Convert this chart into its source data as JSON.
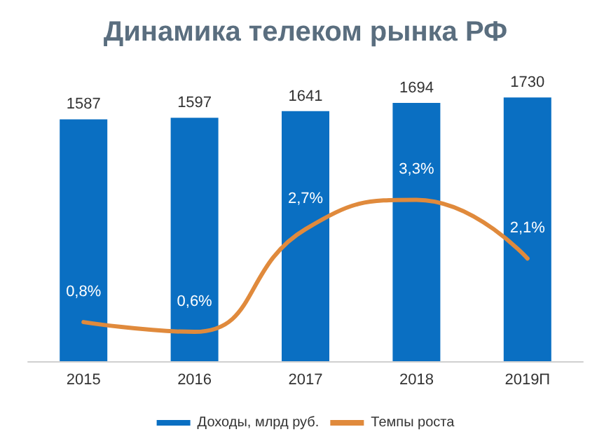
{
  "chart_data": {
    "type": "bar",
    "title": "Динамика телеком рынка РФ",
    "categories": [
      "2015",
      "2016",
      "2017",
      "2018",
      "2019П"
    ],
    "series": [
      {
        "name": "Доходы, млрд руб.",
        "color": "#0a6fc2",
        "values": [
          1587,
          1597,
          1641,
          1694,
          1730
        ],
        "value_labels": [
          "1587",
          "1597",
          "1641",
          "1694",
          "1730"
        ]
      },
      {
        "name": "Темпы роста",
        "type": "line",
        "axis": "y2",
        "color": "#e08a3c",
        "values": [
          0.8,
          0.6,
          2.7,
          3.3,
          2.1
        ],
        "value_labels": [
          "0,8%",
          "0,6%",
          "2,7%",
          "3,3%",
          "2,1%"
        ]
      }
    ],
    "legend": "bottom"
  }
}
